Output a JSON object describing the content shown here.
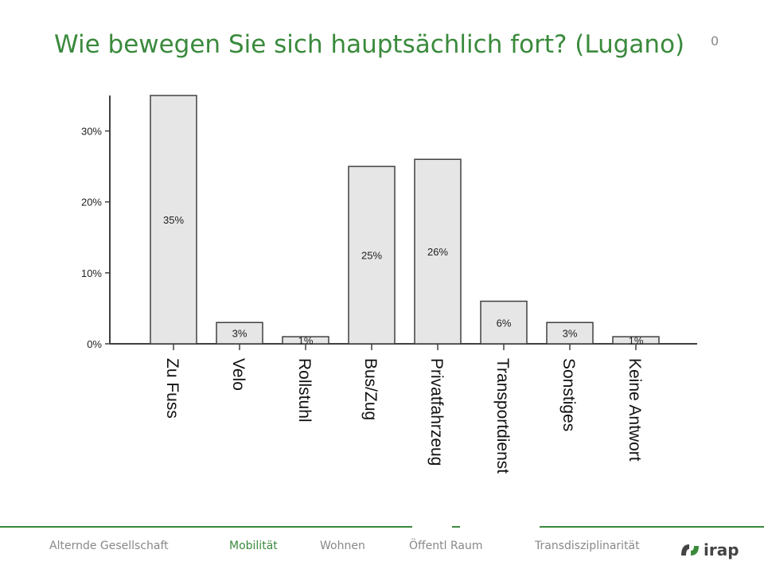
{
  "slide": {
    "title": "Wie bewegen Sie sich hauptsächlich fort? (Lugano)",
    "number": "0"
  },
  "chart_data": {
    "type": "bar",
    "categories": [
      "Zu Fuss",
      "Velo",
      "Rollstuhl",
      "Bus/Zug",
      "Privatfahrzeug",
      "Transportdienst",
      "Sonstiges",
      "Keine Antwort"
    ],
    "values": [
      35,
      3,
      1,
      25,
      26,
      6,
      3,
      1
    ],
    "value_labels": [
      "35%",
      "3%",
      "1%",
      "25%",
      "26%",
      "6%",
      "3%",
      "1%"
    ],
    "y_ticks": [
      0,
      10,
      20,
      30
    ],
    "y_tick_labels": [
      "0%",
      "10%",
      "20%",
      "30%"
    ],
    "ylim": [
      0,
      35
    ],
    "grid": false,
    "bar_color": "#e6e6e6",
    "bar_stroke": "#404040"
  },
  "footer": {
    "nav": [
      "Alternde Gesellschaft",
      "Mobilität",
      "Wohnen",
      "Öffentl Raum",
      "Transdisziplinarität"
    ],
    "active_index": 1,
    "logo_text": "irap",
    "accent": "#3a8a3c"
  }
}
